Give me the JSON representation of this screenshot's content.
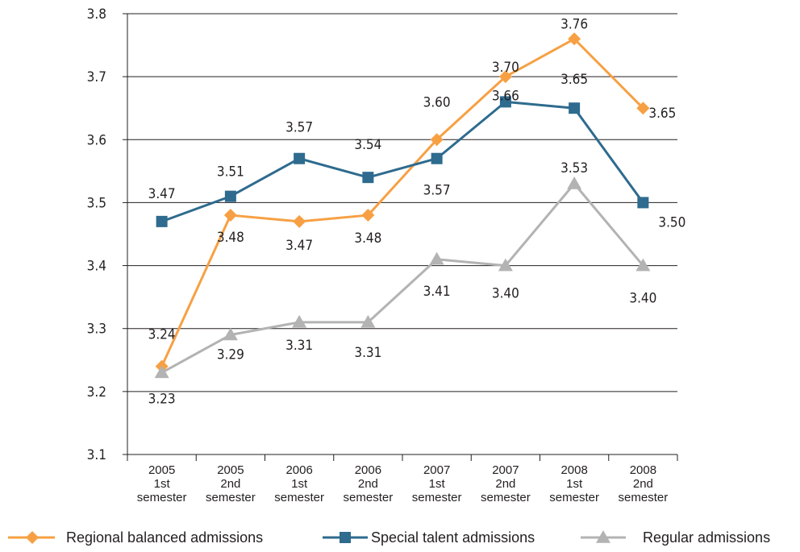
{
  "chart_data": {
    "type": "line",
    "categories": [
      [
        "2005",
        "1st",
        "semester"
      ],
      [
        "2005",
        "2nd",
        "semester"
      ],
      [
        "2006",
        "1st",
        "semester"
      ],
      [
        "2006",
        "2nd",
        "semester"
      ],
      [
        "2007",
        "1st",
        "semester"
      ],
      [
        "2007",
        "2nd",
        "semester"
      ],
      [
        "2008",
        "1st",
        "semester"
      ],
      [
        "2008",
        "2nd",
        "semester"
      ]
    ],
    "ylim": [
      3.1,
      3.8
    ],
    "yticks": [
      "3.1",
      "3.2",
      "3.3",
      "3.4",
      "3.5",
      "3.6",
      "3.7",
      "3.8"
    ],
    "grid": true,
    "legend_position": "bottom",
    "series": [
      {
        "name": "Regional balanced admissions",
        "marker": "diamond",
        "color": "#f7a043",
        "values": [
          3.24,
          3.48,
          3.47,
          3.48,
          3.6,
          3.7,
          3.76,
          3.65
        ],
        "labels": [
          "3.24",
          "3.48",
          "3.47",
          "3.48",
          "3.60",
          "3.70",
          "3.76",
          "3.65"
        ]
      },
      {
        "name": "Special talent admissions",
        "marker": "square",
        "color": "#2e6b8e",
        "values": [
          3.47,
          3.51,
          3.57,
          3.54,
          3.57,
          3.66,
          3.65,
          3.5
        ],
        "labels": [
          "3.47",
          "3.51",
          "3.57",
          "3.54",
          "3.57",
          "3.66",
          "3.65",
          "3.50"
        ]
      },
      {
        "name": "Regular admissions",
        "marker": "triangle",
        "color": "#b3b3b3",
        "values": [
          3.23,
          3.29,
          3.31,
          3.31,
          3.41,
          3.4,
          3.53,
          3.4
        ],
        "labels": [
          "3.23",
          "3.29",
          "3.31",
          "3.31",
          "3.41",
          "3.40",
          "3.53",
          "3.40"
        ]
      }
    ]
  }
}
